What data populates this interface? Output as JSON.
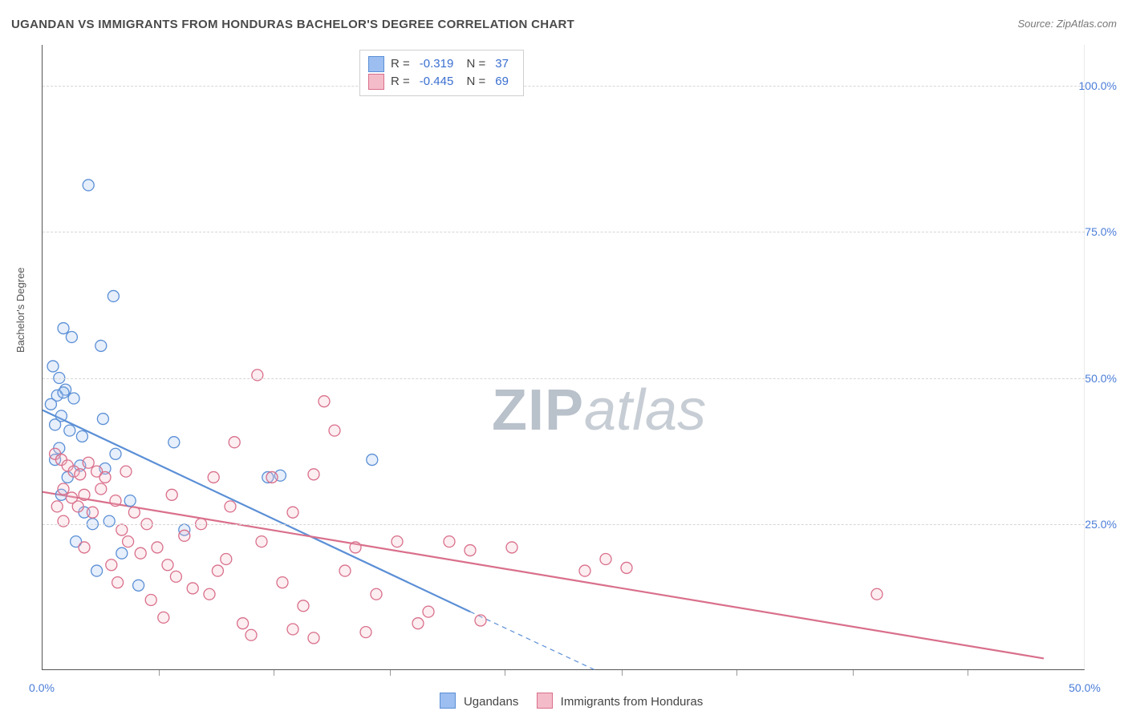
{
  "title": "UGANDAN VS IMMIGRANTS FROM HONDURAS BACHELOR'S DEGREE CORRELATION CHART",
  "source": "Source: ZipAtlas.com",
  "watermark": {
    "part1": "ZIP",
    "part2": "atlas"
  },
  "ylabel": "Bachelor's Degree",
  "chart": {
    "type": "scatter",
    "background_color": "#ffffff",
    "grid_color": "#d6d6d6",
    "grid_dash": "4,4",
    "axis_color": "#555555",
    "label_color": "#4a7dd8",
    "label_fontsize": 14,
    "title_fontsize": 15,
    "title_color": "#4a4a4a",
    "xlim": [
      0,
      50
    ],
    "ylim": [
      0,
      107
    ],
    "ytick_values": [
      25,
      50,
      75,
      100
    ],
    "ytick_labels": [
      "25.0%",
      "50.0%",
      "75.0%",
      "100.0%"
    ],
    "xtick_values": [
      0,
      50
    ],
    "xtick_labels": [
      "0.0%",
      "50.0%"
    ],
    "xtick_minor": [
      5.6,
      11.1,
      16.7,
      22.2,
      27.8,
      33.3,
      38.9,
      44.4
    ],
    "marker_radius": 7,
    "marker_stroke_width": 1.3,
    "marker_fill_opacity": 0.25,
    "line_width": 2.2,
    "dash_pattern": "6,5"
  },
  "series": [
    {
      "id": "ugandans",
      "label": "Ugandans",
      "color_fill": "#9cbef0",
      "color_stroke": "#5b8fd6",
      "R": "-0.319",
      "N": "37",
      "trend": {
        "x1": 0,
        "y1": 44.5,
        "x2": 20.5,
        "y2": 10.0
      },
      "trend_dash": {
        "x1": 20.5,
        "y1": 10.0,
        "x2": 26.5,
        "y2": 0
      },
      "points": [
        [
          2.2,
          83.0
        ],
        [
          3.4,
          64.0
        ],
        [
          1.0,
          58.5
        ],
        [
          1.4,
          57.0
        ],
        [
          2.8,
          55.5
        ],
        [
          0.5,
          52.0
        ],
        [
          0.8,
          50.0
        ],
        [
          1.1,
          48.0
        ],
        [
          0.7,
          47.0
        ],
        [
          1.5,
          46.5
        ],
        [
          0.4,
          45.5
        ],
        [
          0.9,
          43.5
        ],
        [
          0.6,
          42.0
        ],
        [
          1.3,
          41.0
        ],
        [
          3.0,
          34.5
        ],
        [
          3.5,
          37.0
        ],
        [
          6.3,
          39.0
        ],
        [
          2.0,
          27.0
        ],
        [
          2.4,
          25.0
        ],
        [
          3.2,
          25.5
        ],
        [
          1.6,
          22.0
        ],
        [
          3.8,
          20.0
        ],
        [
          2.6,
          17.0
        ],
        [
          4.6,
          14.5
        ],
        [
          10.8,
          33.0
        ],
        [
          11.4,
          33.3
        ],
        [
          15.8,
          36.0
        ],
        [
          1.8,
          35.0
        ],
        [
          1.2,
          33.0
        ],
        [
          0.9,
          30.0
        ],
        [
          4.2,
          29.0
        ],
        [
          6.8,
          24.0
        ],
        [
          0.8,
          38.0
        ],
        [
          2.9,
          43.0
        ],
        [
          1.9,
          40.0
        ],
        [
          0.6,
          36.0
        ],
        [
          1.0,
          47.5
        ]
      ]
    },
    {
      "id": "honduras",
      "label": "Immigrants from Honduras",
      "color_fill": "#f4bcc9",
      "color_stroke": "#d96f8b",
      "R": "-0.445",
      "N": "69",
      "trend": {
        "x1": 0,
        "y1": 30.5,
        "x2": 48.0,
        "y2": 2.0
      },
      "points": [
        [
          0.6,
          37.0
        ],
        [
          0.9,
          36.0
        ],
        [
          1.2,
          35.0
        ],
        [
          1.5,
          34.0
        ],
        [
          1.8,
          33.5
        ],
        [
          2.2,
          35.5
        ],
        [
          2.6,
          34.0
        ],
        [
          1.0,
          31.0
        ],
        [
          1.4,
          29.5
        ],
        [
          1.7,
          28.0
        ],
        [
          2.0,
          30.0
        ],
        [
          2.4,
          27.0
        ],
        [
          2.8,
          31.0
        ],
        [
          3.0,
          33.0
        ],
        [
          3.5,
          29.0
        ],
        [
          3.8,
          24.0
        ],
        [
          4.1,
          22.0
        ],
        [
          4.4,
          27.0
        ],
        [
          4.7,
          20.0
        ],
        [
          5.0,
          25.0
        ],
        [
          5.5,
          21.0
        ],
        [
          6.0,
          18.0
        ],
        [
          6.4,
          16.0
        ],
        [
          6.8,
          23.0
        ],
        [
          7.2,
          14.0
        ],
        [
          7.6,
          25.0
        ],
        [
          8.0,
          13.0
        ],
        [
          8.4,
          17.0
        ],
        [
          8.8,
          19.0
        ],
        [
          9.2,
          39.0
        ],
        [
          9.6,
          8.0
        ],
        [
          10.0,
          6.0
        ],
        [
          10.5,
          22.0
        ],
        [
          11.0,
          33.0
        ],
        [
          11.5,
          15.0
        ],
        [
          12.0,
          27.0
        ],
        [
          12.5,
          11.0
        ],
        [
          13.0,
          33.5
        ],
        [
          13.5,
          46.0
        ],
        [
          14.0,
          41.0
        ],
        [
          14.5,
          17.0
        ],
        [
          15.0,
          21.0
        ],
        [
          15.5,
          6.5
        ],
        [
          13.0,
          5.5
        ],
        [
          12.0,
          7.0
        ],
        [
          17.0,
          22.0
        ],
        [
          18.0,
          8.0
        ],
        [
          18.5,
          10.0
        ],
        [
          19.5,
          22.0
        ],
        [
          20.5,
          20.5
        ],
        [
          21.0,
          8.5
        ],
        [
          22.5,
          21.0
        ],
        [
          26.0,
          17.0
        ],
        [
          27.0,
          19.0
        ],
        [
          28.0,
          17.5
        ],
        [
          40.0,
          13.0
        ],
        [
          10.3,
          50.5
        ],
        [
          3.3,
          18.0
        ],
        [
          3.6,
          15.0
        ],
        [
          5.2,
          12.0
        ],
        [
          5.8,
          9.0
        ],
        [
          9.0,
          28.0
        ],
        [
          1.0,
          25.5
        ],
        [
          0.7,
          28.0
        ],
        [
          16.0,
          13.0
        ],
        [
          6.2,
          30.0
        ],
        [
          8.2,
          33.0
        ],
        [
          4.0,
          34.0
        ],
        [
          2.0,
          21.0
        ]
      ]
    }
  ],
  "legend_bottom": [
    {
      "series": "ugandans"
    },
    {
      "series": "honduras"
    }
  ]
}
